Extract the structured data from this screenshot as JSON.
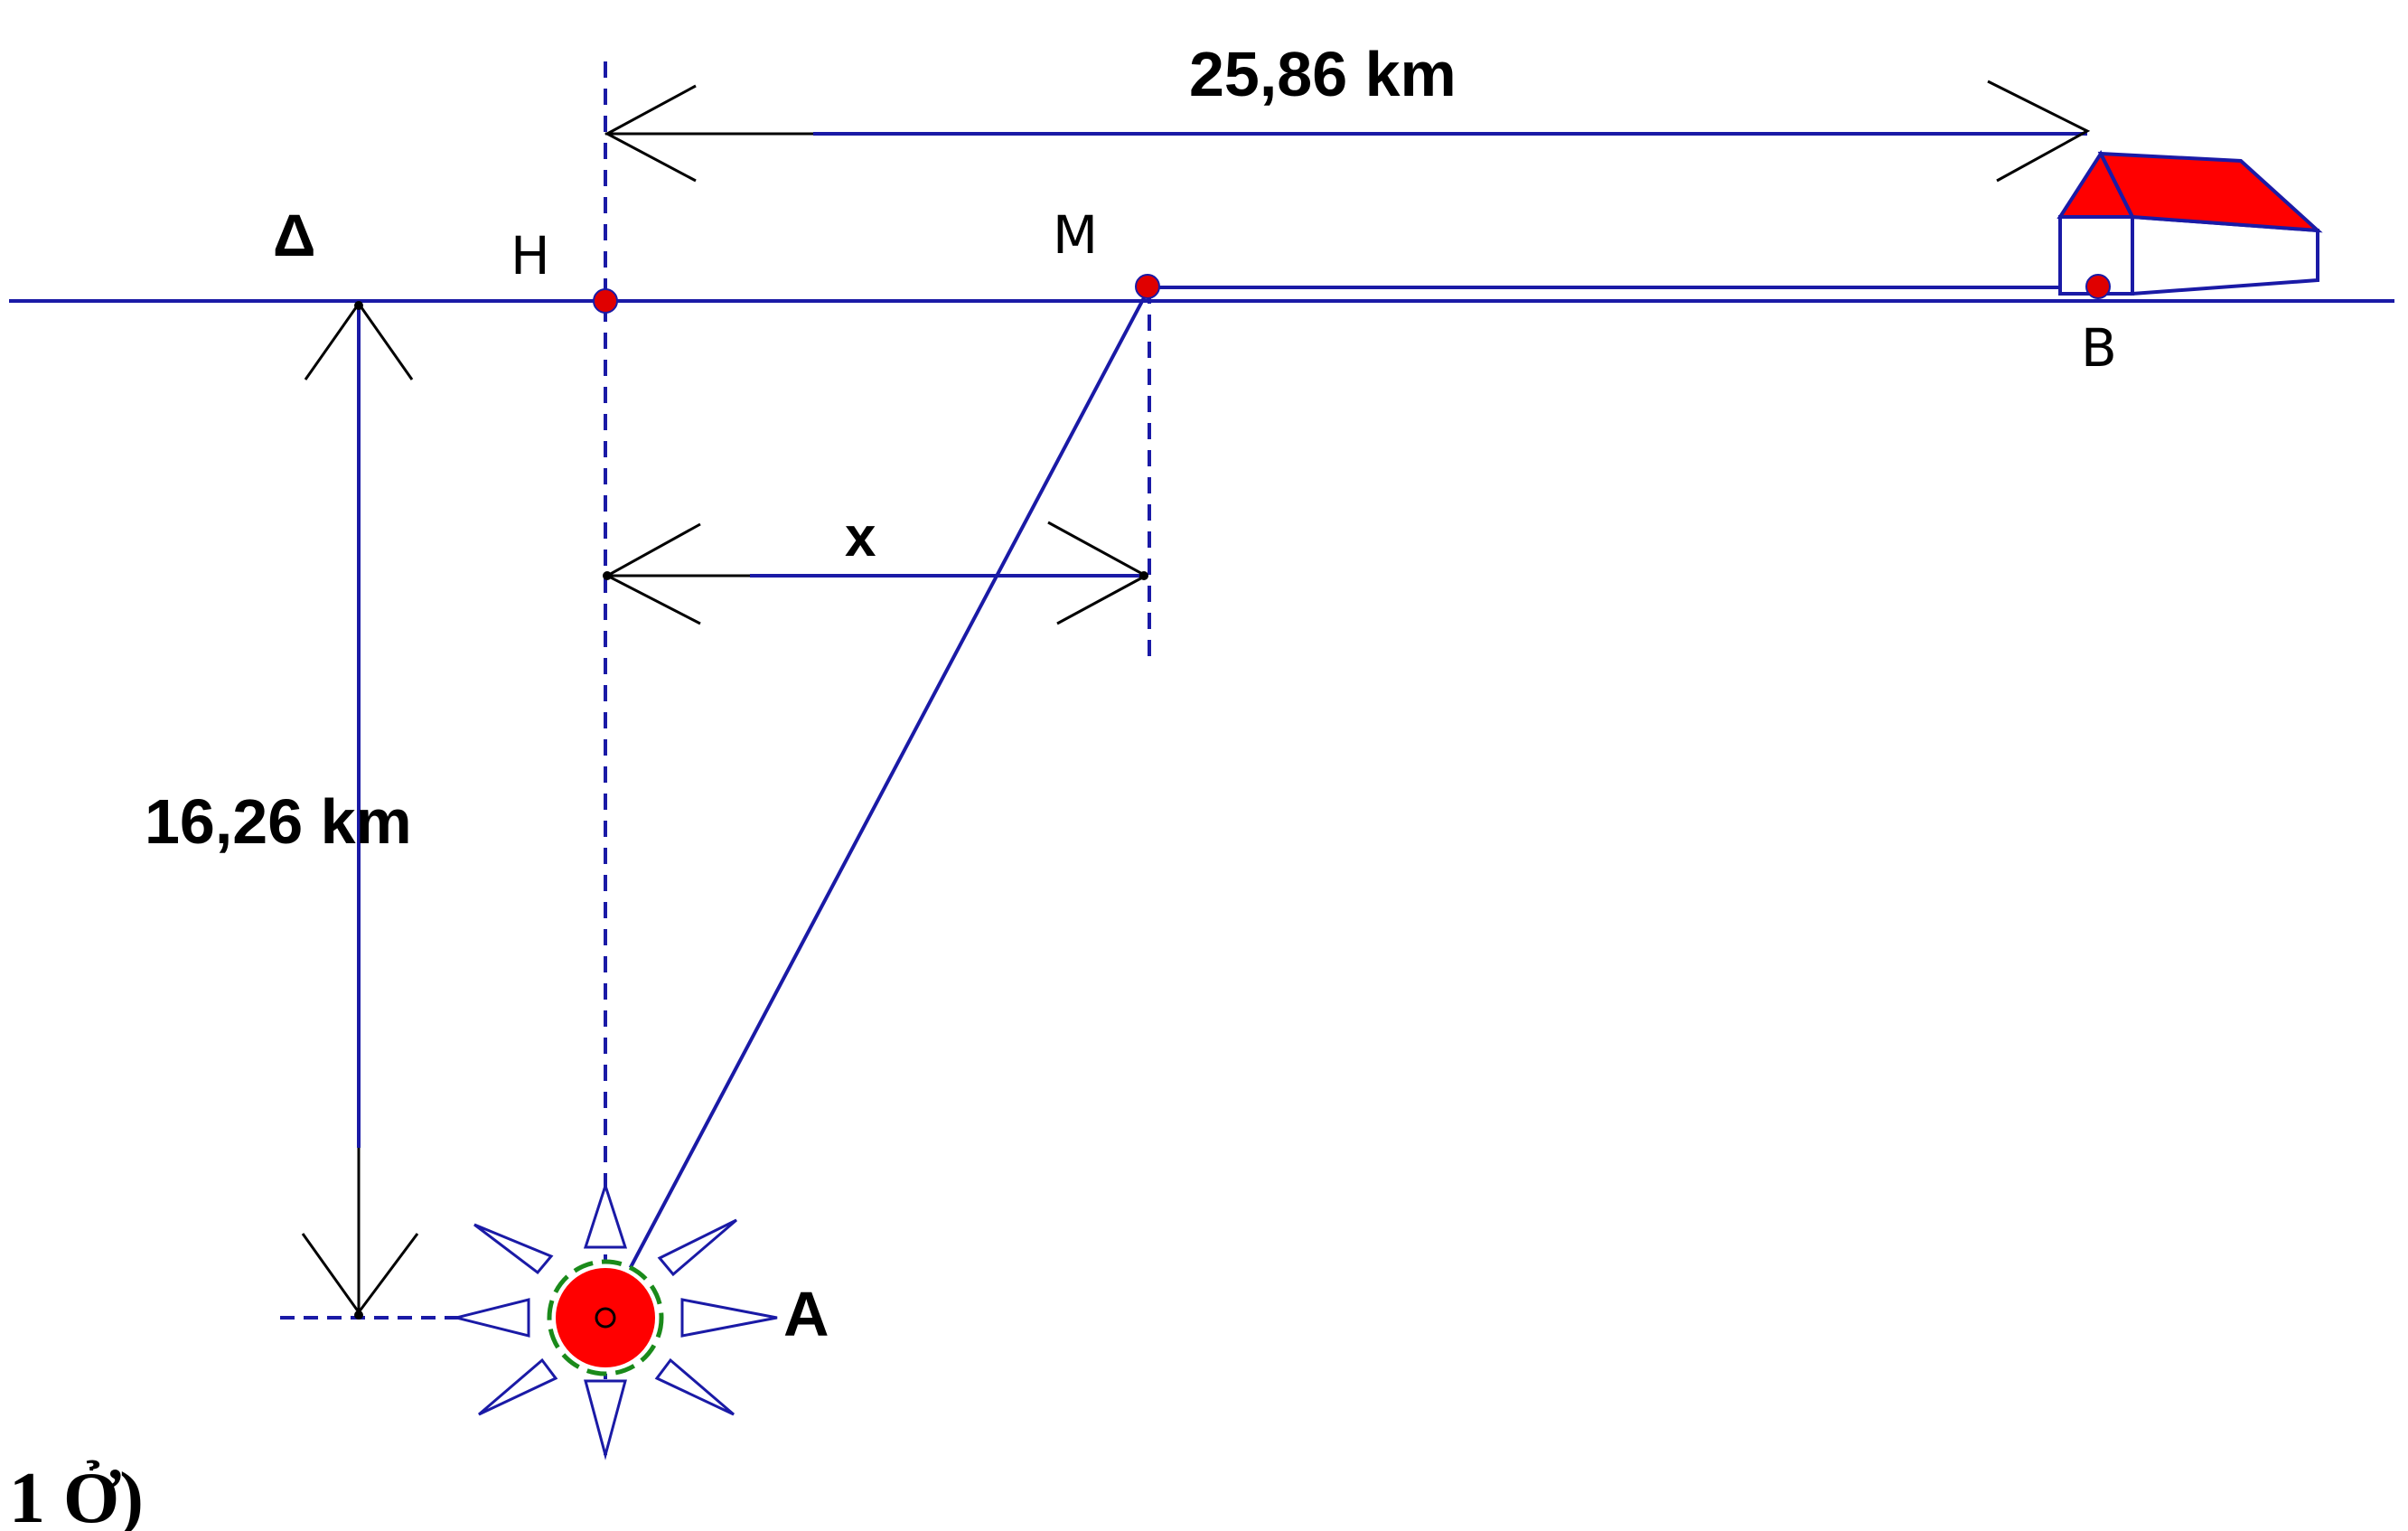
{
  "diagram": {
    "labels": {
      "delta": "Δ",
      "h": "H",
      "m": "M",
      "b": "B",
      "a": "A",
      "x": "x",
      "dist_hb": "25,86 km",
      "dist_delta_a": "16,26 km"
    },
    "caption": "1 Ở)"
  },
  "colors": {
    "line": "#1a1aa6",
    "arrow_line": "#000000",
    "point": "#e00000",
    "roof": "#ff0000",
    "source_ring": "#1a8a1a"
  },
  "icons": {
    "house": "house-icon",
    "source": "starburst-icon"
  }
}
